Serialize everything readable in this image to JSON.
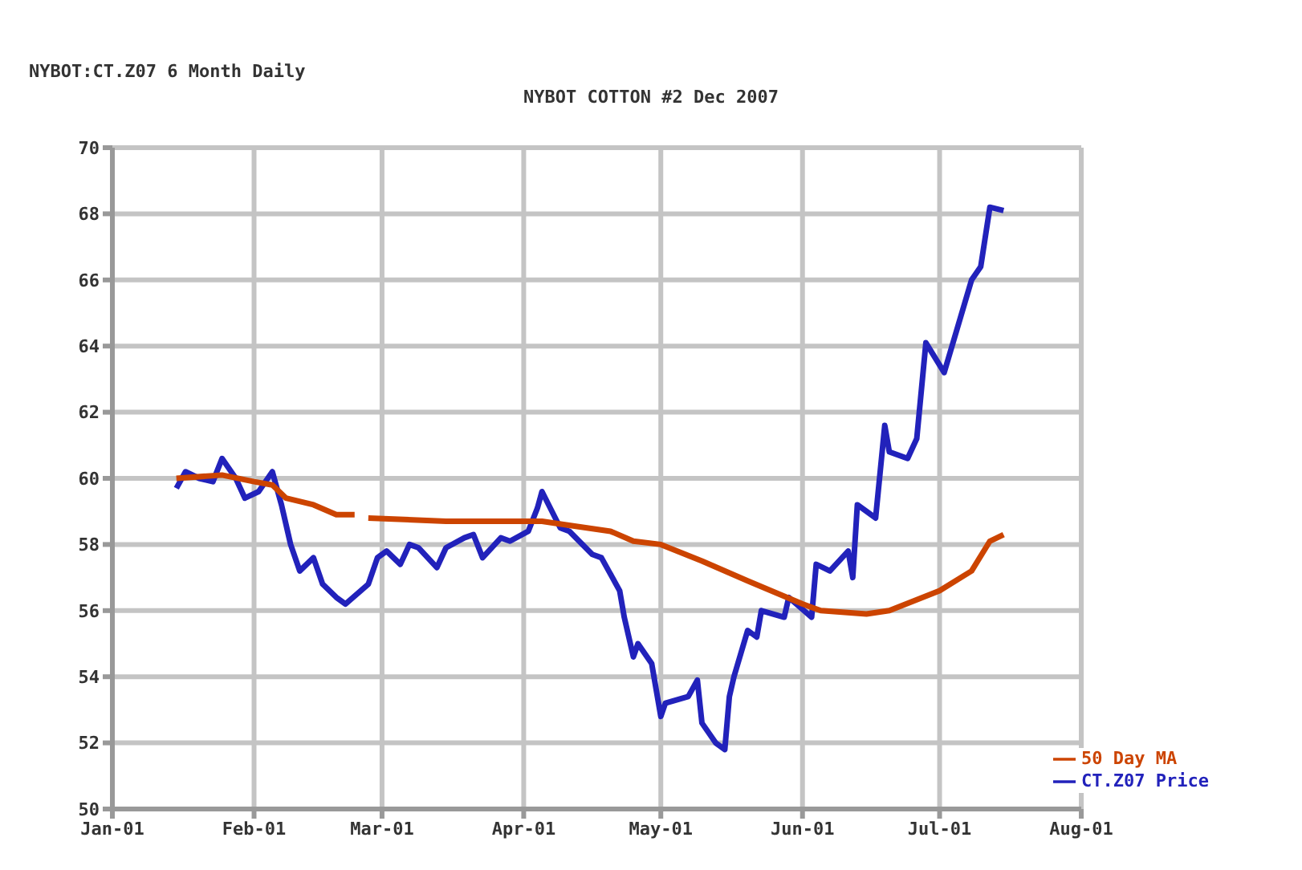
{
  "chart_data": {
    "type": "line",
    "subtitle": "NYBOT:CT.Z07 6 Month Daily",
    "title": "NYBOT COTTON #2 Dec 2007",
    "xlim": [
      "2007-01-01",
      "2007-08-01"
    ],
    "xticks": [
      {
        "value": "2007-01-01",
        "label": "Jan-01"
      },
      {
        "value": "2007-02-01",
        "label": "Feb-01"
      },
      {
        "value": "2007-03-01",
        "label": "Mar-01"
      },
      {
        "value": "2007-04-01",
        "label": "Apr-01"
      },
      {
        "value": "2007-05-01",
        "label": "May-01"
      },
      {
        "value": "2007-06-01",
        "label": "Jun-01"
      },
      {
        "value": "2007-07-01",
        "label": "Jul-01"
      },
      {
        "value": "2007-08-01",
        "label": "Aug-01"
      }
    ],
    "ylim": [
      50,
      70
    ],
    "yticks": [
      50,
      52,
      54,
      56,
      58,
      60,
      62,
      64,
      66,
      68,
      70
    ],
    "grid": true,
    "legend": "bottom right",
    "marker": "none",
    "line_style": "solid",
    "series": [
      {
        "name": "CT.Z07 Price",
        "color": "#2222bb",
        "x": [
          "2007-01-15",
          "2007-01-17",
          "2007-01-20",
          "2007-01-23",
          "2007-01-25",
          "2007-01-28",
          "2007-01-30",
          "2007-02-02",
          "2007-02-05",
          "2007-02-07",
          "2007-02-09",
          "2007-02-11",
          "2007-02-14",
          "2007-02-16",
          "2007-02-19",
          "2007-02-21",
          "2007-02-26",
          "2007-02-28",
          "2007-03-02",
          "2007-03-05",
          "2007-03-07",
          "2007-03-09",
          "2007-03-13",
          "2007-03-15",
          "2007-03-19",
          "2007-03-21",
          "2007-03-23",
          "2007-03-27",
          "2007-03-29",
          "2007-04-02",
          "2007-04-04",
          "2007-04-05",
          "2007-04-09",
          "2007-04-11",
          "2007-04-16",
          "2007-04-18",
          "2007-04-22",
          "2007-04-23",
          "2007-04-25",
          "2007-04-26",
          "2007-04-29",
          "2007-05-01",
          "2007-05-02",
          "2007-05-07",
          "2007-05-09",
          "2007-05-10",
          "2007-05-13",
          "2007-05-15",
          "2007-05-16",
          "2007-05-17",
          "2007-05-20",
          "2007-05-22",
          "2007-05-23",
          "2007-05-28",
          "2007-05-29",
          "2007-06-03",
          "2007-06-04",
          "2007-06-07",
          "2007-06-11",
          "2007-06-12",
          "2007-06-13",
          "2007-06-17",
          "2007-06-19",
          "2007-06-20",
          "2007-06-24",
          "2007-06-26",
          "2007-06-28",
          "2007-07-02",
          "2007-07-05",
          "2007-07-08",
          "2007-07-10",
          "2007-07-12",
          "2007-07-15"
        ],
        "values": [
          59.7,
          60.2,
          60.0,
          59.9,
          60.6,
          60.0,
          59.4,
          59.6,
          60.2,
          59.2,
          58.0,
          57.2,
          57.6,
          56.8,
          56.4,
          56.2,
          56.8,
          57.6,
          57.8,
          57.4,
          58.0,
          57.9,
          57.3,
          57.9,
          58.2,
          58.3,
          57.6,
          58.2,
          58.1,
          58.4,
          59.1,
          59.6,
          58.5,
          58.4,
          57.7,
          57.6,
          56.6,
          55.8,
          54.6,
          55.0,
          54.4,
          52.8,
          53.2,
          53.4,
          53.9,
          52.6,
          52.0,
          51.8,
          53.4,
          54.0,
          55.4,
          55.2,
          56.0,
          55.8,
          56.4,
          55.8,
          57.4,
          57.2,
          57.8,
          57.0,
          59.2,
          58.8,
          61.6,
          60.8,
          60.6,
          61.2,
          64.1,
          63.2,
          64.6,
          66.0,
          66.4,
          68.2,
          68.1
        ]
      },
      {
        "name": "50 Day MA",
        "color": "#cc4400",
        "x": [
          "2007-01-15",
          "2007-01-25",
          "2007-02-01",
          "2007-02-05",
          "2007-02-08",
          "2007-02-14",
          "2007-02-19",
          "2007-02-23",
          "2007-02-24",
          "2007-02-26",
          "2007-03-15",
          "2007-04-02",
          "2007-04-05",
          "2007-04-10",
          "2007-04-20",
          "2007-04-25",
          "2007-05-01",
          "2007-05-10",
          "2007-05-20",
          "2007-06-01",
          "2007-06-05",
          "2007-06-15",
          "2007-06-20",
          "2007-07-01",
          "2007-07-08",
          "2007-07-12",
          "2007-07-15"
        ],
        "values": [
          60.0,
          60.1,
          59.9,
          59.8,
          59.4,
          59.2,
          58.9,
          58.9,
          null,
          58.8,
          58.7,
          58.7,
          58.7,
          58.6,
          58.4,
          58.1,
          58.0,
          57.5,
          56.9,
          56.2,
          56.0,
          55.9,
          56.0,
          56.6,
          57.2,
          58.1,
          58.3
        ]
      }
    ]
  }
}
